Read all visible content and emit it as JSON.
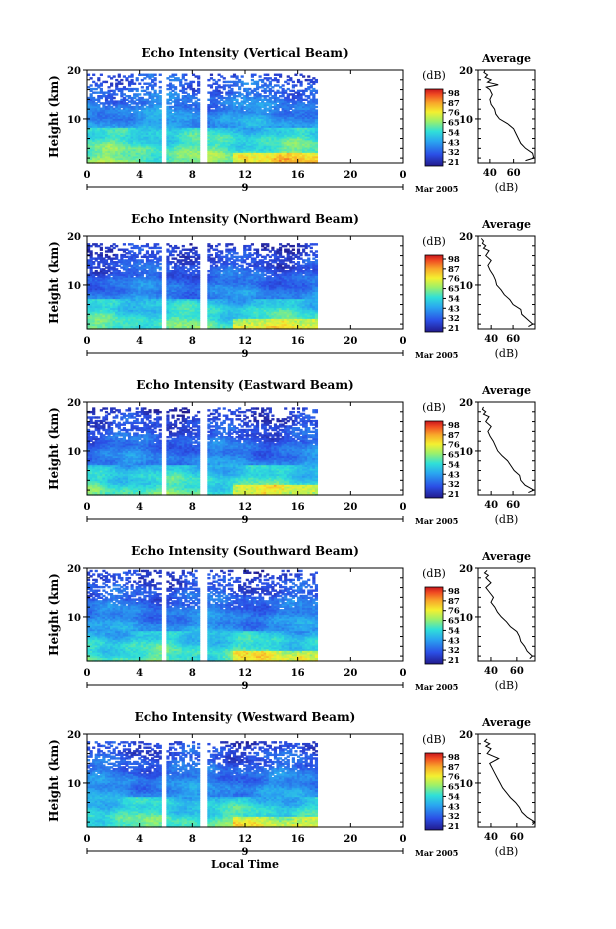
{
  "chart_data": [
    {
      "type": "heatmap",
      "title": "Echo Intensity (Vertical Beam)",
      "ylabel": "Height (km)",
      "ylim": [
        1,
        20
      ],
      "xlim": [
        0,
        24
      ],
      "xticks": [
        "0",
        "4",
        "8",
        "12",
        "16",
        "20",
        "0"
      ],
      "day_label": "9",
      "date_label": "Mar 2005",
      "data_gaps_hours": [
        [
          5.7,
          5.95
        ],
        [
          8.6,
          9.1
        ]
      ],
      "data_end_hour": 17.5,
      "colorbar": {
        "unit": "(dB)",
        "ticks": [
          "98",
          "87",
          "76",
          "65",
          "54",
          "43",
          "32",
          "21"
        ],
        "range": [
          21,
          98
        ]
      },
      "average": {
        "title": "Average",
        "xlabel": "(dB)",
        "xticks": [
          "40",
          "60"
        ],
        "xlim": [
          30,
          78
        ],
        "height_km": [
          1.5,
          2,
          3,
          4,
          5,
          6,
          7,
          8,
          9,
          10,
          11,
          12,
          13,
          14,
          15,
          16,
          16.5,
          17,
          17.5,
          18,
          18.5,
          19,
          19.5,
          20
        ],
        "db": [
          70,
          77,
          76,
          70,
          66,
          64,
          62,
          60,
          55,
          48,
          45,
          44,
          41,
          40,
          42,
          40,
          37,
          47,
          38,
          41,
          36,
          38,
          35,
          36
        ]
      },
      "profile": {
        "low_db": 64,
        "low_top_km": 8,
        "noise_db": 42,
        "top_data_km": 19.2
      }
    },
    {
      "type": "heatmap",
      "title": "Echo Intensity (Northward Beam)",
      "ylabel": "Height (km)",
      "ylim": [
        1,
        20
      ],
      "xlim": [
        0,
        24
      ],
      "xticks": [
        "0",
        "4",
        "8",
        "12",
        "16",
        "20",
        "0"
      ],
      "day_label": "9",
      "date_label": "Mar 2005",
      "data_gaps_hours": [
        [
          5.7,
          5.95
        ],
        [
          8.6,
          9.1
        ]
      ],
      "data_end_hour": 17.5,
      "colorbar": {
        "unit": "(dB)",
        "ticks": [
          "98",
          "87",
          "76",
          "65",
          "54",
          "43",
          "32",
          "21"
        ],
        "range": [
          21,
          98
        ]
      },
      "average": {
        "title": "Average",
        "xlabel": "(dB)",
        "xticks": [
          "40",
          "60"
        ],
        "xlim": [
          28,
          80
        ],
        "height_km": [
          1.5,
          2,
          3,
          4,
          5,
          6,
          7,
          8,
          9,
          10,
          11,
          12,
          13,
          14,
          15,
          16,
          17,
          17.5,
          18,
          18.5,
          19,
          19.5
        ],
        "db": [
          74,
          78,
          73,
          68,
          67,
          60,
          57,
          52,
          49,
          45,
          44,
          42,
          39,
          37,
          40,
          35,
          38,
          33,
          35,
          32,
          33,
          31
        ]
      },
      "profile": {
        "low_db": 60,
        "low_top_km": 7,
        "noise_db": 38,
        "top_data_km": 18.3
      }
    },
    {
      "type": "heatmap",
      "title": "Echo Intensity (Eastward Beam)",
      "ylabel": "Height (km)",
      "ylim": [
        1,
        20
      ],
      "xlim": [
        0,
        24
      ],
      "xticks": [
        "0",
        "4",
        "8",
        "12",
        "16",
        "20",
        "0"
      ],
      "day_label": "9",
      "date_label": "Mar 2005",
      "data_gaps_hours": [
        [
          5.7,
          5.95
        ],
        [
          8.6,
          9.1
        ]
      ],
      "data_end_hour": 17.5,
      "colorbar": {
        "unit": "(dB)",
        "ticks": [
          "98",
          "87",
          "76",
          "65",
          "54",
          "43",
          "32",
          "21"
        ],
        "range": [
          21,
          98
        ]
      },
      "average": {
        "title": "Average",
        "xlabel": "(dB)",
        "xticks": [
          "40",
          "60"
        ],
        "xlim": [
          28,
          80
        ],
        "height_km": [
          1.5,
          2,
          3,
          4,
          5,
          6,
          7,
          8,
          9,
          10,
          11,
          12,
          13,
          14,
          15,
          16,
          17,
          17.5,
          18,
          18.5,
          19
        ],
        "db": [
          74,
          79,
          71,
          67,
          66,
          61,
          58,
          55,
          50,
          46,
          44,
          42,
          39,
          37,
          40,
          35,
          38,
          33,
          35,
          32,
          33
        ]
      },
      "profile": {
        "low_db": 60,
        "low_top_km": 7,
        "noise_db": 38,
        "top_data_km": 18.6
      }
    },
    {
      "type": "heatmap",
      "title": "Echo Intensity (Southward Beam)",
      "ylabel": "Height (km)",
      "ylim": [
        1,
        20
      ],
      "xlim": [
        0,
        24
      ],
      "xticks": [
        "0",
        "4",
        "8",
        "12",
        "16",
        "20",
        "0"
      ],
      "day_label": "9",
      "date_label": "Mar 2005",
      "data_gaps_hours": [
        [
          5.7,
          5.95
        ],
        [
          8.6,
          9.1
        ]
      ],
      "data_end_hour": 17.5,
      "colorbar": {
        "unit": "(dB)",
        "ticks": [
          "98",
          "87",
          "76",
          "65",
          "54",
          "43",
          "32",
          "21"
        ],
        "range": [
          21,
          98
        ]
      },
      "average": {
        "title": "Average",
        "xlabel": "(dB)",
        "xticks": [
          "40",
          "60"
        ],
        "xlim": [
          30,
          74
        ],
        "height_km": [
          1.5,
          2,
          3,
          4,
          5,
          6,
          7,
          8,
          9,
          10,
          11,
          12,
          13,
          14,
          15,
          16,
          17,
          18,
          18.5,
          19,
          19.5
        ],
        "db": [
          70,
          72,
          68,
          66,
          63,
          62,
          60,
          55,
          52,
          48,
          45,
          43,
          40,
          42,
          39,
          36,
          40,
          36,
          38,
          35,
          37
        ]
      },
      "profile": {
        "low_db": 60,
        "low_top_km": 7,
        "noise_db": 40,
        "top_data_km": 19.5
      }
    },
    {
      "type": "heatmap",
      "title": "Echo Intensity (Westward Beam)",
      "ylabel": "Height (km)",
      "ylim": [
        1,
        20
      ],
      "xlim": [
        0,
        24
      ],
      "xticks": [
        "0",
        "4",
        "8",
        "12",
        "16",
        "20",
        "0"
      ],
      "day_label": "9",
      "date_label": "Mar 2005",
      "xlabel": "Local Time",
      "data_gaps_hours": [
        [
          5.7,
          5.95
        ],
        [
          8.6,
          9.1
        ]
      ],
      "data_end_hour": 17.5,
      "colorbar": {
        "unit": "(dB)",
        "ticks": [
          "98",
          "87",
          "76",
          "65",
          "54",
          "43",
          "32",
          "21"
        ],
        "range": [
          21,
          98
        ]
      },
      "average": {
        "title": "Average",
        "xlabel": "(dB)",
        "xticks": [
          "40",
          "60"
        ],
        "xlim": [
          30,
          74
        ],
        "height_km": [
          1.5,
          2,
          3,
          4,
          5,
          6,
          7,
          8,
          9,
          10,
          11,
          12,
          13,
          14,
          15,
          16,
          17,
          17.5,
          18,
          18.5,
          19
        ],
        "db": [
          72,
          74,
          68,
          64,
          62,
          59,
          55,
          52,
          49,
          47,
          45,
          43,
          41,
          39,
          46,
          37,
          40,
          36,
          39,
          35,
          37
        ]
      },
      "profile": {
        "low_db": 60,
        "low_top_km": 7,
        "noise_db": 40,
        "top_data_km": 18.4
      }
    }
  ]
}
